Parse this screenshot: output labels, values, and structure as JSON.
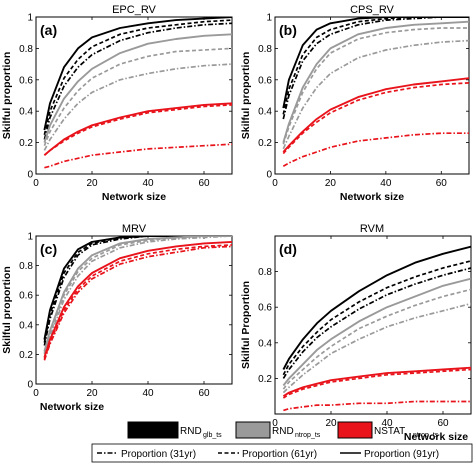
{
  "figure": {
    "x_label": "Network size",
    "y_label_default": "Skilful proportion",
    "y_label_panel_d": "Skilful Proportion"
  },
  "colors": {
    "glb": "#000000",
    "ntrop": "#9a9a9a",
    "nstat": "#e8131b"
  },
  "legend": {
    "boxes": [
      {
        "main": "RND",
        "sub": "glb_ts",
        "color": "#000000"
      },
      {
        "main": "RND",
        "sub": "ntrop_ts",
        "color": "#9a9a9a"
      },
      {
        "main": "NSTAT",
        "sub": "ntrop_ts",
        "color": "#e8131b"
      }
    ],
    "lines": [
      {
        "label": "Proportion (31yr)",
        "style": "dashdot"
      },
      {
        "label": "Proportion (61yr)",
        "style": "dashed"
      },
      {
        "label": "Proportion (91yr)",
        "style": "solid"
      }
    ]
  },
  "chart_data": [
    {
      "type": "line",
      "panel": "(a)",
      "title": "EPC_RV",
      "xlabel": "Network size",
      "ylabel": "Skilful proportion",
      "xlim": [
        0,
        70
      ],
      "ylim": [
        0,
        1
      ],
      "xticks": [
        0,
        20,
        40,
        60
      ],
      "yticks": [
        0,
        0.2,
        0.4,
        0.6,
        0.8,
        1
      ],
      "ytick_labels": [
        "0",
        "0.2",
        "0.4",
        "0.6",
        "0.8",
        "1"
      ],
      "x": [
        3,
        5,
        10,
        15,
        20,
        30,
        40,
        50,
        60,
        70
      ],
      "series": [
        {
          "name": "RND glb_ts (91yr)",
          "group": "glb",
          "style": "solid",
          "values": [
            0.28,
            0.45,
            0.68,
            0.8,
            0.87,
            0.93,
            0.96,
            0.98,
            0.99,
            1.0
          ]
        },
        {
          "name": "RND glb_ts (61yr)",
          "group": "glb",
          "style": "dashed",
          "values": [
            0.25,
            0.4,
            0.61,
            0.73,
            0.81,
            0.89,
            0.93,
            0.95,
            0.97,
            0.98
          ]
        },
        {
          "name": "RND glb_ts (31yr)",
          "group": "glb",
          "style": "dashdot",
          "values": [
            0.22,
            0.36,
            0.56,
            0.68,
            0.76,
            0.85,
            0.9,
            0.93,
            0.95,
            0.96
          ]
        },
        {
          "name": "RND ntrop_ts (91yr)",
          "group": "ntrop",
          "style": "solid",
          "values": [
            0.2,
            0.31,
            0.48,
            0.59,
            0.67,
            0.77,
            0.83,
            0.86,
            0.88,
            0.89
          ]
        },
        {
          "name": "RND ntrop_ts (61yr)",
          "group": "ntrop",
          "style": "dashed",
          "values": [
            0.18,
            0.27,
            0.42,
            0.53,
            0.61,
            0.7,
            0.75,
            0.78,
            0.79,
            0.8
          ]
        },
        {
          "name": "RND ntrop_ts (31yr)",
          "group": "ntrop",
          "style": "dashdot",
          "values": [
            0.15,
            0.22,
            0.35,
            0.45,
            0.52,
            0.6,
            0.64,
            0.67,
            0.69,
            0.7
          ]
        },
        {
          "name": "NSTAT ntrop_ts (91yr)",
          "group": "nstat",
          "style": "solid",
          "values": [
            0.12,
            0.15,
            0.22,
            0.27,
            0.31,
            0.36,
            0.4,
            0.42,
            0.44,
            0.45
          ]
        },
        {
          "name": "NSTAT ntrop_ts (61yr)",
          "group": "nstat",
          "style": "dashed",
          "values": [
            0.12,
            0.15,
            0.21,
            0.26,
            0.3,
            0.35,
            0.39,
            0.41,
            0.43,
            0.44
          ]
        },
        {
          "name": "NSTAT ntrop_ts (31yr)",
          "group": "nstat",
          "style": "dashdot",
          "values": [
            0.04,
            0.05,
            0.08,
            0.1,
            0.12,
            0.14,
            0.16,
            0.17,
            0.18,
            0.19
          ]
        }
      ]
    },
    {
      "type": "line",
      "panel": "(b)",
      "title": "CPS_RV",
      "xlabel": "Network size",
      "ylabel": "Skilful proportion",
      "xlim": [
        0,
        70
      ],
      "ylim": [
        0,
        1
      ],
      "xticks": [
        0,
        20,
        40,
        60
      ],
      "yticks": [
        0,
        0.2,
        0.4,
        0.6,
        0.8,
        1
      ],
      "ytick_labels": [
        "0",
        "0.2",
        "0.4",
        "0.6",
        "0.8",
        "1"
      ],
      "x": [
        3,
        5,
        10,
        15,
        20,
        30,
        40,
        50,
        60,
        70
      ],
      "series": [
        {
          "name": "RND glb_ts (91yr)",
          "group": "glb",
          "style": "solid",
          "values": [
            0.42,
            0.6,
            0.82,
            0.92,
            0.96,
            0.99,
            1.0,
            1.0,
            1.0,
            1.0
          ]
        },
        {
          "name": "RND glb_ts (61yr)",
          "group": "glb",
          "style": "dashed",
          "values": [
            0.38,
            0.54,
            0.76,
            0.87,
            0.92,
            0.97,
            0.99,
            1.0,
            1.0,
            1.0
          ]
        },
        {
          "name": "RND glb_ts (31yr)",
          "group": "glb",
          "style": "dashdot",
          "values": [
            0.35,
            0.5,
            0.72,
            0.83,
            0.89,
            0.95,
            0.98,
            0.99,
            1.0,
            1.0
          ]
        },
        {
          "name": "RND ntrop_ts (91yr)",
          "group": "ntrop",
          "style": "solid",
          "values": [
            0.2,
            0.32,
            0.55,
            0.7,
            0.8,
            0.89,
            0.93,
            0.95,
            0.96,
            0.97
          ]
        },
        {
          "name": "RND ntrop_ts (61yr)",
          "group": "ntrop",
          "style": "dashed",
          "values": [
            0.19,
            0.3,
            0.52,
            0.67,
            0.77,
            0.86,
            0.9,
            0.92,
            0.93,
            0.93
          ]
        },
        {
          "name": "RND ntrop_ts (31yr)",
          "group": "ntrop",
          "style": "dashdot",
          "values": [
            0.16,
            0.24,
            0.42,
            0.55,
            0.64,
            0.74,
            0.79,
            0.82,
            0.84,
            0.85
          ]
        },
        {
          "name": "NSTAT ntrop_ts (91yr)",
          "group": "nstat",
          "style": "solid",
          "values": [
            0.14,
            0.18,
            0.27,
            0.35,
            0.41,
            0.49,
            0.54,
            0.57,
            0.59,
            0.61
          ]
        },
        {
          "name": "NSTAT ntrop_ts (61yr)",
          "group": "nstat",
          "style": "dashed",
          "values": [
            0.13,
            0.17,
            0.26,
            0.33,
            0.39,
            0.47,
            0.52,
            0.55,
            0.57,
            0.58
          ]
        },
        {
          "name": "NSTAT ntrop_ts (31yr)",
          "group": "nstat",
          "style": "dashdot",
          "values": [
            0.05,
            0.07,
            0.11,
            0.14,
            0.17,
            0.21,
            0.23,
            0.25,
            0.26,
            0.26
          ]
        }
      ]
    },
    {
      "type": "line",
      "panel": "(c)",
      "title": "MRV",
      "xlabel": "Network size",
      "ylabel": "Skilful proportion",
      "xlim": [
        0,
        70
      ],
      "ylim": [
        0,
        1
      ],
      "xticks": [
        0,
        20,
        40,
        60
      ],
      "yticks": [
        0,
        0.2,
        0.4,
        0.6,
        0.8,
        1
      ],
      "ytick_labels": [
        "0",
        "0.2",
        "0.4",
        "0.6",
        "0.8",
        "1"
      ],
      "x": [
        3,
        5,
        10,
        15,
        20,
        30,
        40,
        50,
        60,
        70
      ],
      "series": [
        {
          "name": "RND glb_ts (91yr)",
          "group": "glb",
          "style": "solid",
          "values": [
            0.3,
            0.5,
            0.78,
            0.91,
            0.96,
            0.99,
            1.0,
            1.0,
            1.0,
            1.0
          ]
        },
        {
          "name": "RND glb_ts (61yr)",
          "group": "glb",
          "style": "dashed",
          "values": [
            0.28,
            0.47,
            0.75,
            0.89,
            0.95,
            0.99,
            1.0,
            1.0,
            1.0,
            1.0
          ]
        },
        {
          "name": "RND glb_ts (31yr)",
          "group": "glb",
          "style": "dashdot",
          "values": [
            0.26,
            0.44,
            0.72,
            0.87,
            0.94,
            0.98,
            1.0,
            1.0,
            1.0,
            1.0
          ]
        },
        {
          "name": "RND ntrop_ts (91yr)",
          "group": "ntrop",
          "style": "solid",
          "values": [
            0.22,
            0.36,
            0.62,
            0.78,
            0.87,
            0.95,
            0.98,
            0.99,
            1.0,
            1.0
          ]
        },
        {
          "name": "RND ntrop_ts (61yr)",
          "group": "ntrop",
          "style": "dashed",
          "values": [
            0.21,
            0.34,
            0.6,
            0.76,
            0.85,
            0.94,
            0.97,
            0.99,
            1.0,
            1.0
          ]
        },
        {
          "name": "RND ntrop_ts (31yr)",
          "group": "ntrop",
          "style": "dashdot",
          "values": [
            0.2,
            0.32,
            0.57,
            0.73,
            0.83,
            0.92,
            0.96,
            0.98,
            0.99,
            1.0
          ]
        },
        {
          "name": "NSTAT ntrop_ts (91yr)",
          "group": "nstat",
          "style": "solid",
          "values": [
            0.18,
            0.3,
            0.52,
            0.66,
            0.75,
            0.85,
            0.9,
            0.93,
            0.95,
            0.96
          ]
        },
        {
          "name": "NSTAT ntrop_ts (61yr)",
          "group": "nstat",
          "style": "dashed",
          "values": [
            0.17,
            0.28,
            0.5,
            0.64,
            0.73,
            0.83,
            0.88,
            0.91,
            0.93,
            0.94
          ]
        },
        {
          "name": "NSTAT ntrop_ts (31yr)",
          "group": "nstat",
          "style": "dashdot",
          "values": [
            0.16,
            0.27,
            0.48,
            0.62,
            0.71,
            0.81,
            0.86,
            0.89,
            0.92,
            0.93
          ]
        }
      ]
    },
    {
      "type": "line",
      "panel": "(d)",
      "title": "RVM",
      "xlabel": "Network size",
      "ylabel": "Skilful Proportion",
      "xlim": [
        0,
        70
      ],
      "ylim": [
        0,
        1
      ],
      "xticks": [
        0,
        20,
        40,
        60
      ],
      "yticks": [
        0,
        0.2,
        0.4,
        0.6,
        0.8,
        1
      ],
      "ytick_labels": [
        "",
        "0.2",
        "0.4",
        "0.6",
        "0.8",
        ""
      ],
      "x": [
        3,
        5,
        10,
        15,
        20,
        30,
        40,
        50,
        60,
        70
      ],
      "series": [
        {
          "name": "RND glb_ts (91yr)",
          "group": "glb",
          "style": "solid",
          "values": [
            0.25,
            0.31,
            0.42,
            0.51,
            0.58,
            0.69,
            0.78,
            0.85,
            0.9,
            0.94
          ]
        },
        {
          "name": "RND glb_ts (61yr)",
          "group": "glb",
          "style": "dashed",
          "values": [
            0.22,
            0.28,
            0.38,
            0.46,
            0.53,
            0.63,
            0.71,
            0.77,
            0.82,
            0.86
          ]
        },
        {
          "name": "RND glb_ts (31yr)",
          "group": "glb",
          "style": "dashdot",
          "values": [
            0.2,
            0.25,
            0.35,
            0.43,
            0.49,
            0.59,
            0.67,
            0.73,
            0.78,
            0.82
          ]
        },
        {
          "name": "RND ntrop_ts (91yr)",
          "group": "ntrop",
          "style": "solid",
          "values": [
            0.16,
            0.2,
            0.28,
            0.36,
            0.42,
            0.52,
            0.6,
            0.66,
            0.72,
            0.76
          ]
        },
        {
          "name": "RND ntrop_ts (61yr)",
          "group": "ntrop",
          "style": "dashed",
          "values": [
            0.14,
            0.18,
            0.25,
            0.32,
            0.38,
            0.48,
            0.55,
            0.61,
            0.66,
            0.7
          ]
        },
        {
          "name": "RND ntrop_ts (31yr)",
          "group": "ntrop",
          "style": "dashdot",
          "values": [
            0.12,
            0.15,
            0.22,
            0.28,
            0.34,
            0.42,
            0.49,
            0.54,
            0.58,
            0.62
          ]
        },
        {
          "name": "NSTAT ntrop_ts (91yr)",
          "group": "nstat",
          "style": "solid",
          "values": [
            0.1,
            0.12,
            0.15,
            0.17,
            0.19,
            0.21,
            0.23,
            0.24,
            0.25,
            0.26
          ]
        },
        {
          "name": "NSTAT ntrop_ts (61yr)",
          "group": "nstat",
          "style": "dashed",
          "values": [
            0.09,
            0.11,
            0.14,
            0.16,
            0.18,
            0.2,
            0.22,
            0.23,
            0.24,
            0.25
          ]
        },
        {
          "name": "NSTAT ntrop_ts (31yr)",
          "group": "nstat",
          "style": "dashdot",
          "values": [
            0.02,
            0.03,
            0.04,
            0.05,
            0.05,
            0.06,
            0.06,
            0.07,
            0.07,
            0.07
          ]
        }
      ]
    }
  ]
}
